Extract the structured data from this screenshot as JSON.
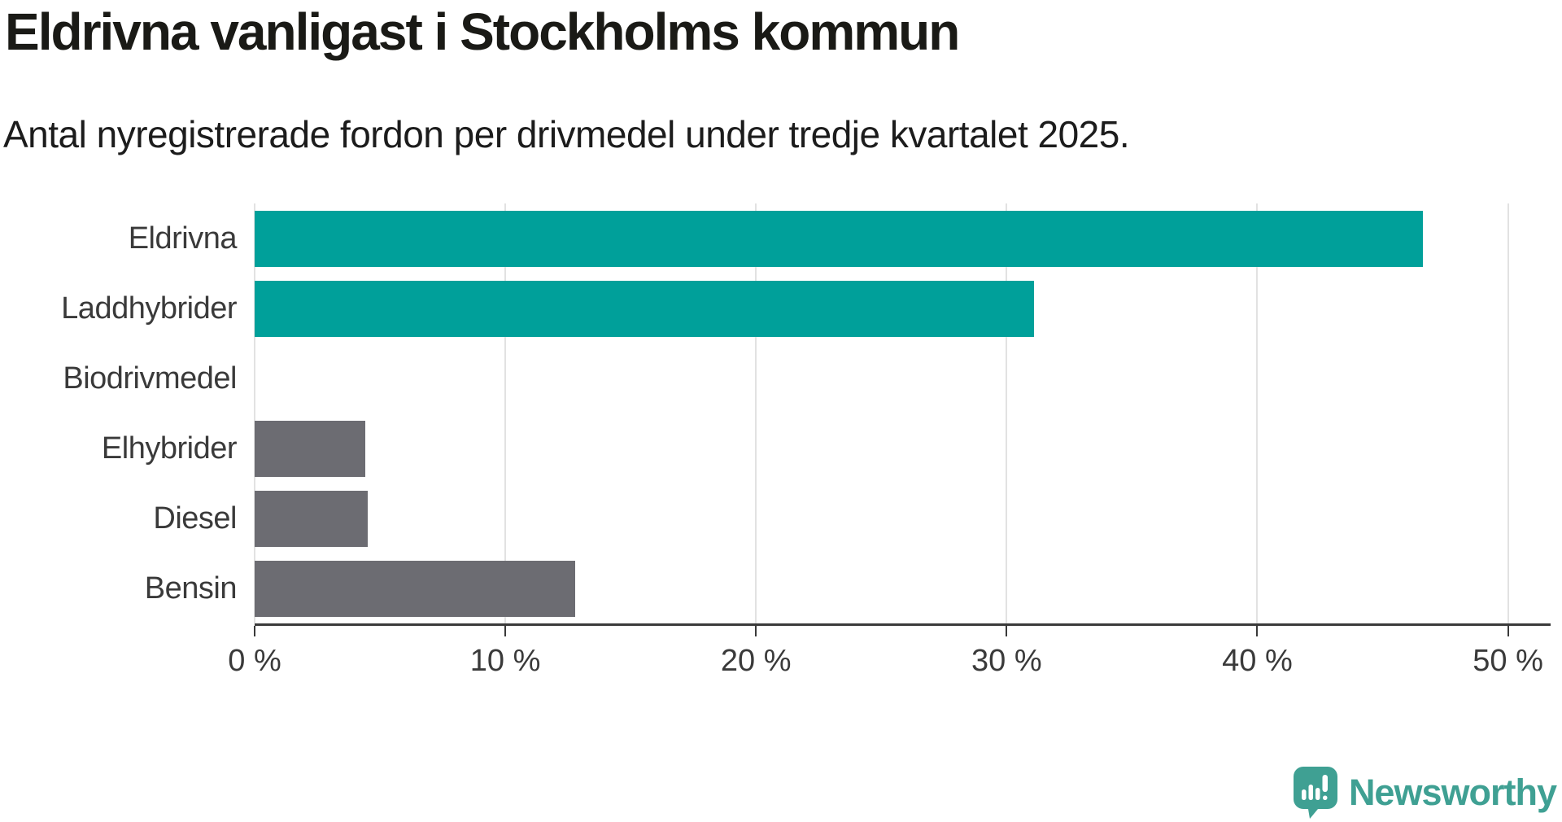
{
  "header": {
    "title": "Eldrivna vanligast i Stockholms kommun",
    "subtitle": "Antal nyregistrerade fordon per drivmedel under tredje kvartalet 2025."
  },
  "chart_data": {
    "type": "bar",
    "orientation": "horizontal",
    "title": "Eldrivna vanligast i Stockholms kommun",
    "subtitle": "Antal nyregistrerade fordon per drivmedel under tredje kvartalet 2025.",
    "categories": [
      "Eldrivna",
      "Laddhybrider",
      "Biodrivmedel",
      "Elhybrider",
      "Diesel",
      "Bensin"
    ],
    "values": [
      46.6,
      31.1,
      0,
      4.4,
      4.5,
      12.8
    ],
    "unit": "%",
    "bar_colors": [
      "#00a09a",
      "#00a09a",
      "#6c6c72",
      "#6c6c72",
      "#6c6c72",
      "#6c6c72"
    ],
    "highlight_color": "#00a09a",
    "default_color": "#6c6c72",
    "xlabel": "",
    "ylabel": "",
    "x_tick_labels": [
      "0 %",
      "10 %",
      "20 %",
      "30 %",
      "40 %",
      "50 %"
    ],
    "x_tick_values": [
      0,
      10,
      20,
      30,
      40,
      50
    ],
    "xlim": [
      0,
      51.7
    ],
    "grid": "vertical-gridlines-on"
  },
  "footer": {
    "brand": "Newsworthy",
    "brand_color": "#3fa093",
    "logo_icon": "speech-bubble-bar-chart"
  }
}
